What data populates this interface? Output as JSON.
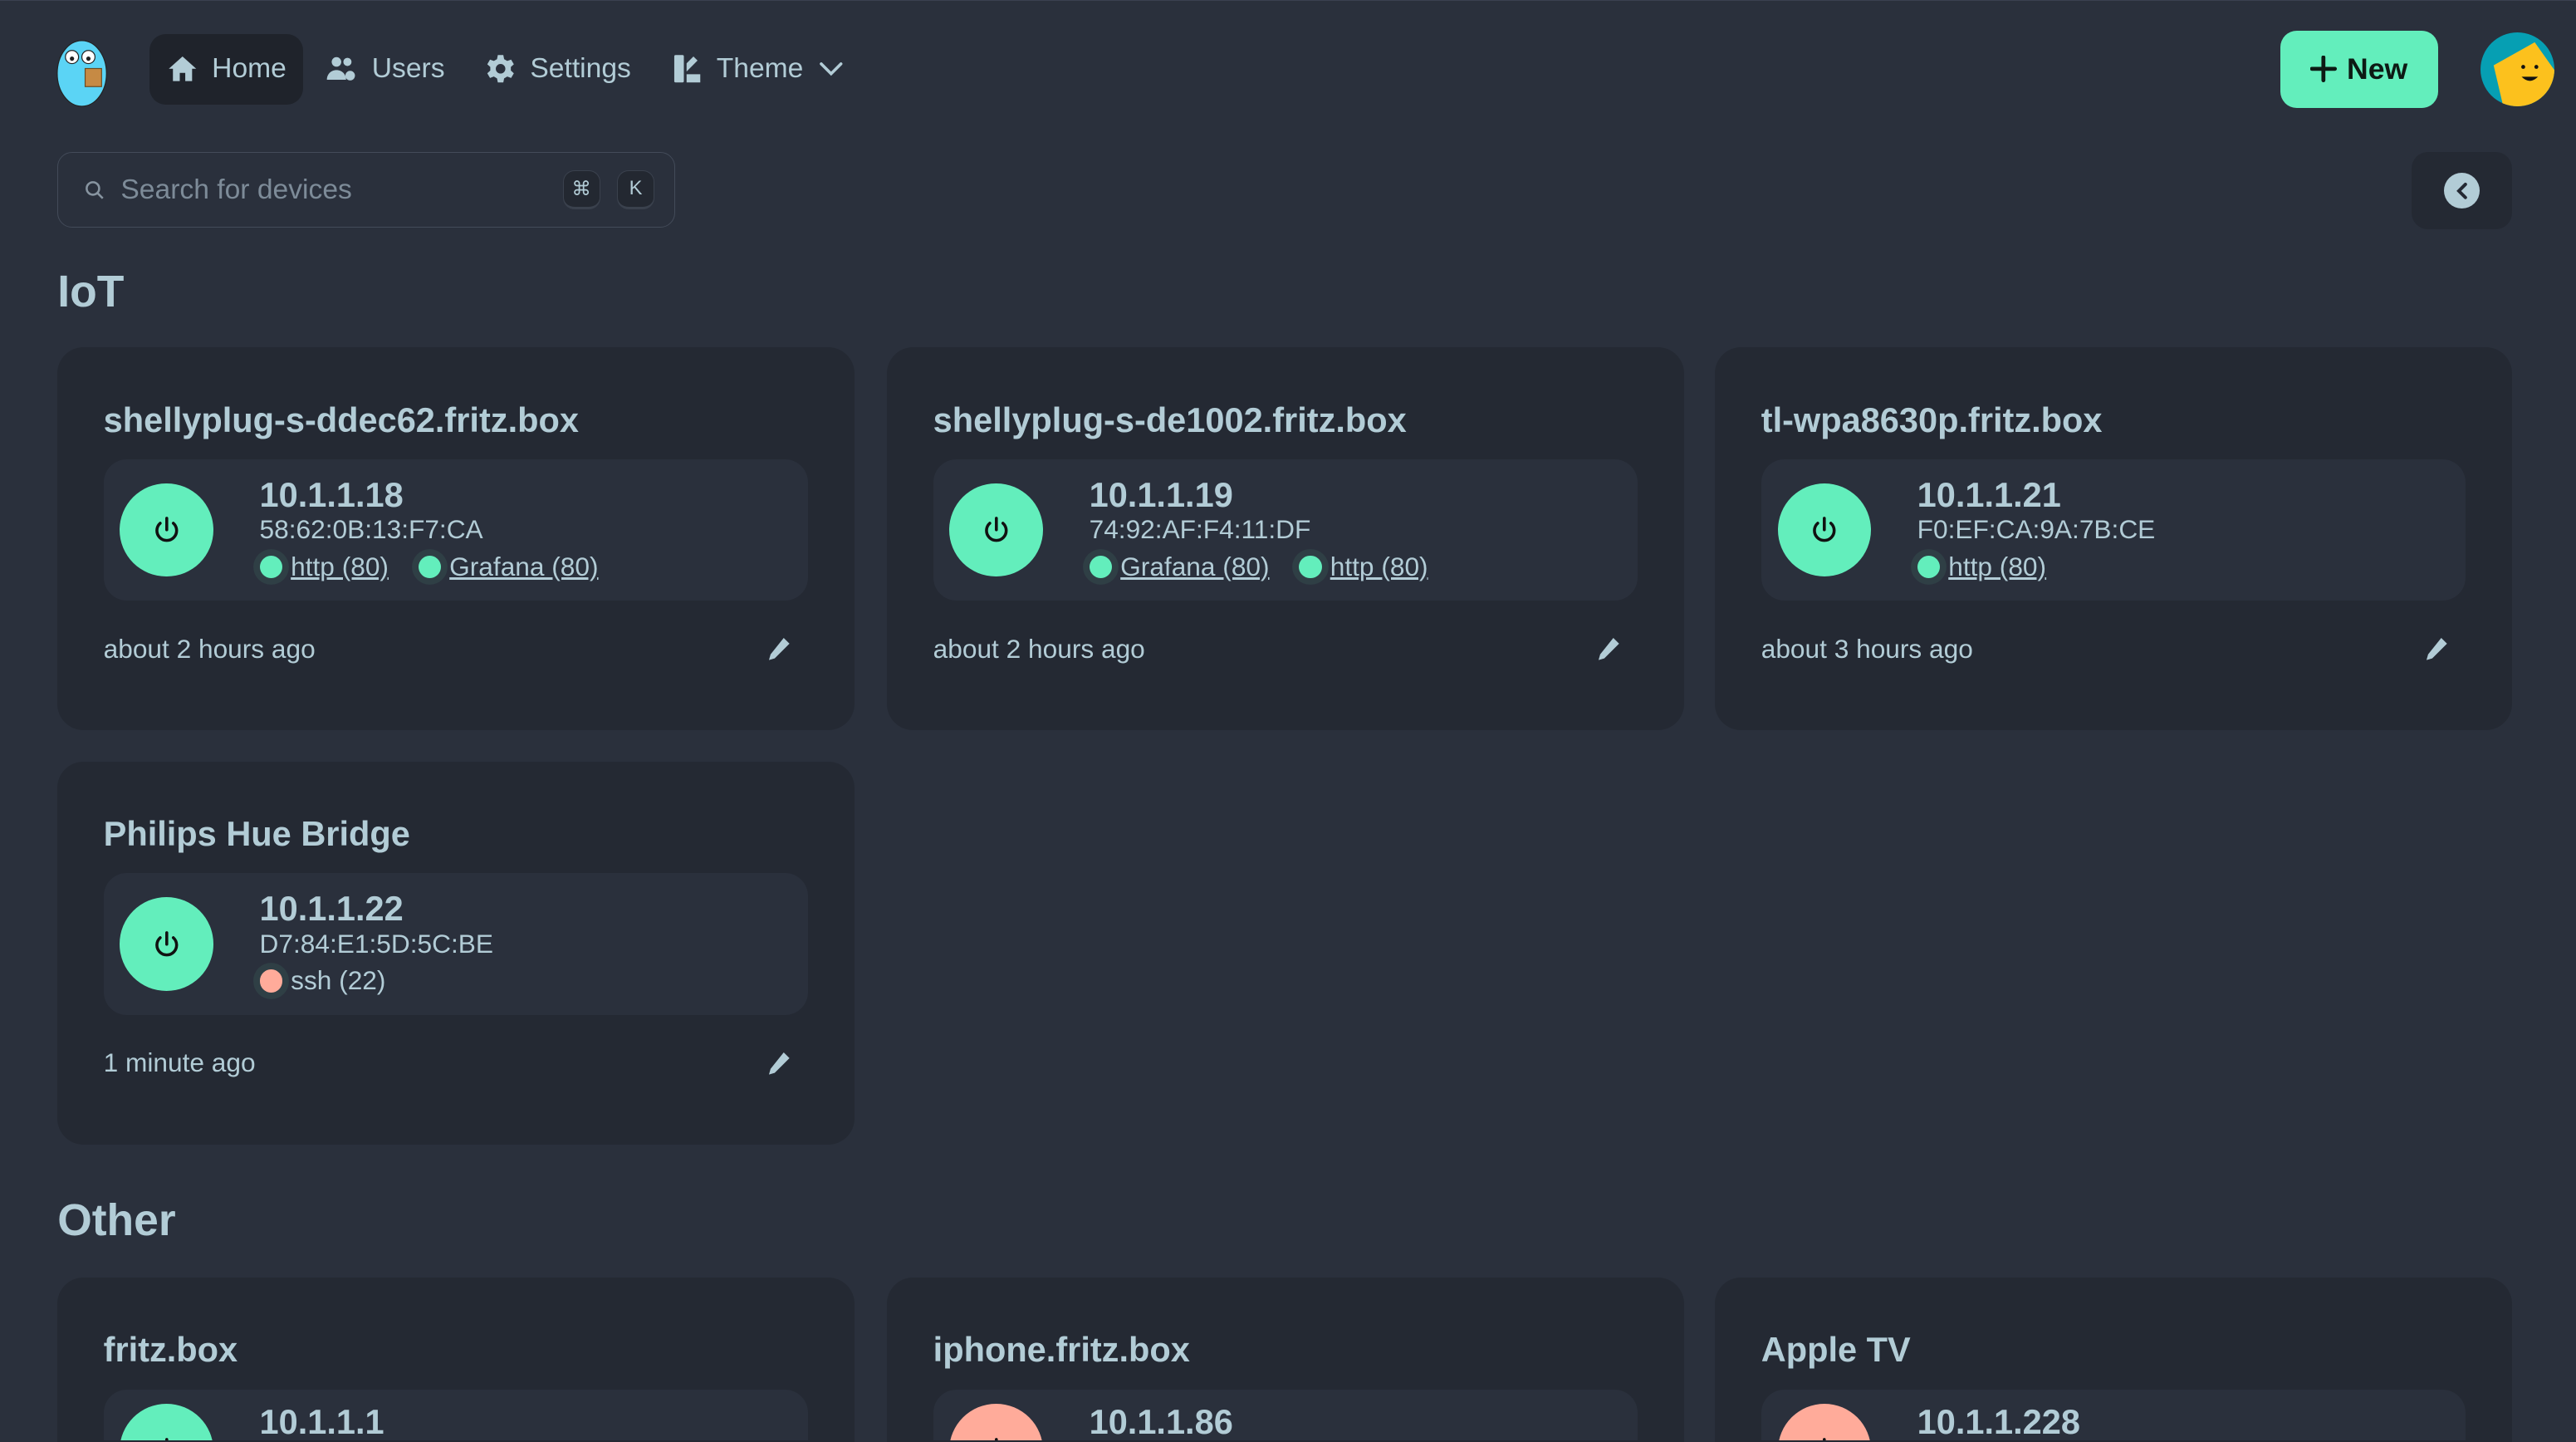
{
  "nav": {
    "items": [
      {
        "label": "Home",
        "icon": "home-icon",
        "active": true
      },
      {
        "label": "Users",
        "icon": "users-icon"
      },
      {
        "label": "Settings",
        "icon": "gear-icon"
      },
      {
        "label": "Theme",
        "icon": "theme-icon"
      }
    ],
    "new_label": "New"
  },
  "search": {
    "placeholder": "Search for devices",
    "value": "",
    "shortcut_mod": "⌘",
    "shortcut_key": "K"
  },
  "colors": {
    "online": "#63eebc",
    "offline": "#ffab9a",
    "background": "#2a303c",
    "card": "#242933",
    "text": "#b2ccd6"
  },
  "groups": [
    {
      "title": "IoT",
      "devices": [
        {
          "name": "shellyplug-s-ddec62.fritz.box",
          "ip": "10.1.1.18",
          "mac": "58:62:0B:13:F7:CA",
          "status": "online",
          "services": [
            {
              "label": "http (80)",
              "status": "online",
              "link": true
            },
            {
              "label": "Grafana (80)",
              "status": "online",
              "link": true
            }
          ],
          "last_seen": "about 2 hours ago"
        },
        {
          "name": "shellyplug-s-de1002.fritz.box",
          "ip": "10.1.1.19",
          "mac": "74:92:AF:F4:11:DF",
          "status": "online",
          "services": [
            {
              "label": "Grafana (80)",
              "status": "online",
              "link": true
            },
            {
              "label": "http (80)",
              "status": "online",
              "link": true
            }
          ],
          "last_seen": "about 2 hours ago"
        },
        {
          "name": "tl-wpa8630p.fritz.box",
          "ip": "10.1.1.21",
          "mac": "F0:EF:CA:9A:7B:CE",
          "status": "online",
          "services": [
            {
              "label": "http (80)",
              "status": "online",
              "link": true
            }
          ],
          "last_seen": "about 3 hours ago"
        },
        {
          "name": "Philips Hue Bridge",
          "ip": "10.1.1.22",
          "mac": "D7:84:E1:5D:5C:BE",
          "status": "online",
          "services": [
            {
              "label": "ssh (22)",
              "status": "offline",
              "link": false
            }
          ],
          "last_seen": "1 minute ago"
        }
      ]
    },
    {
      "title": "Other",
      "devices": [
        {
          "name": "fritz.box",
          "ip": "10.1.1.1",
          "status": "online"
        },
        {
          "name": "iphone.fritz.box",
          "ip": "10.1.1.86",
          "status": "offline"
        },
        {
          "name": "Apple TV",
          "ip": "10.1.1.228",
          "status": "offline"
        }
      ]
    }
  ]
}
